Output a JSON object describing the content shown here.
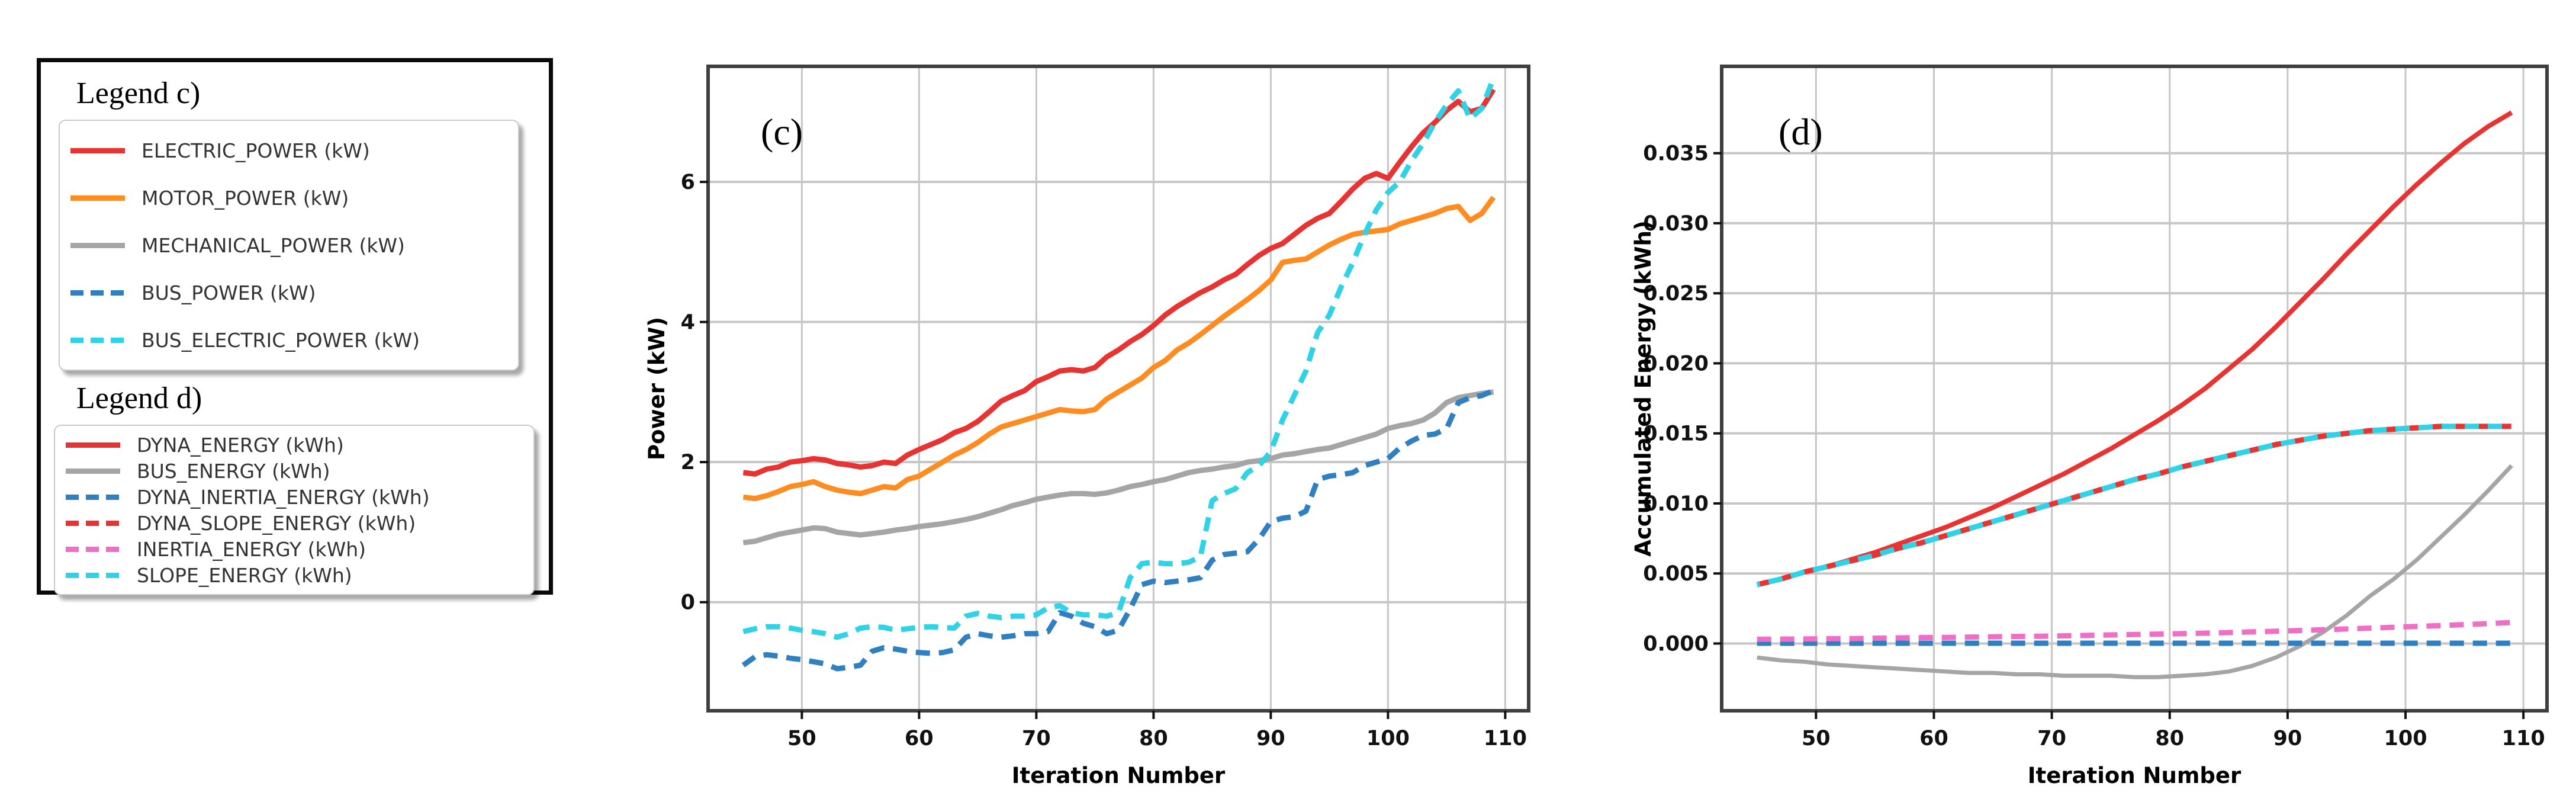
{
  "page": {
    "background": "#ffffff"
  },
  "legend": {
    "title_c": "Legend c)",
    "title_d": "Legend d)",
    "items_c": [
      {
        "key": "electric-power",
        "label": "ELECTRIC_POWER (kW)",
        "color": "#e73331",
        "dash": false
      },
      {
        "key": "motor-power",
        "label": "MOTOR_POWER (kW)",
        "color": "#ff8c21",
        "dash": false
      },
      {
        "key": "mechanical-power",
        "label": "MECHANICAL_POWER (kW)",
        "color": "#a5a5a5",
        "dash": false
      },
      {
        "key": "bus-power",
        "label": "BUS_POWER (kW)",
        "color": "#2f7fc1",
        "dash": true
      },
      {
        "key": "bus-electric-power",
        "label": "BUS_ELECTRIC_POWER (kW)",
        "color": "#2fd2e6",
        "dash": true
      }
    ],
    "items_d": [
      {
        "key": "dyna-energy",
        "label": "DYNA_ENERGY (kWh)",
        "color": "#e73331",
        "dash": false
      },
      {
        "key": "bus-energy",
        "label": "BUS_ENERGY (kWh)",
        "color": "#a5a5a5",
        "dash": false
      },
      {
        "key": "dyna-inertia-energy",
        "label": "DYNA_INERTIA_ENERGY (kWh)",
        "color": "#2f7fc1",
        "dash": true
      },
      {
        "key": "dyna-slope-energy",
        "label": "DYNA_SLOPE_ENERGY (kWh)",
        "color": "#e73331",
        "dash": true
      },
      {
        "key": "inertia-energy",
        "label": "INERTIA_ENERGY (kWh)",
        "color": "#ef6fc6",
        "dash": true
      },
      {
        "key": "slope-energy",
        "label": "SLOPE_ENERGY (kWh)",
        "color": "#2fd2e6",
        "dash": true
      }
    ]
  },
  "chart_data": [
    {
      "type": "line",
      "annotation": "(c)",
      "xlabel": "Iteration Number",
      "ylabel": "Power (kW)",
      "xlim": [
        42,
        112
      ],
      "ylim": [
        -1.55,
        7.65
      ],
      "grid": true,
      "legend_position": "external-left",
      "xticks": {
        "values": [
          50,
          60,
          70,
          80,
          90,
          100,
          110
        ],
        "labels": [
          "50",
          "60",
          "70",
          "80",
          "90",
          "100",
          "110"
        ]
      },
      "yticks": {
        "values": [
          0,
          2,
          4,
          6
        ],
        "labels": [
          "0",
          "2",
          "4",
          "6"
        ]
      },
      "x": [
        45,
        46,
        47,
        48,
        49,
        50,
        51,
        52,
        53,
        54,
        55,
        56,
        57,
        58,
        59,
        60,
        61,
        62,
        63,
        64,
        65,
        66,
        67,
        68,
        69,
        70,
        71,
        72,
        73,
        74,
        75,
        76,
        77,
        78,
        79,
        80,
        81,
        82,
        83,
        84,
        85,
        86,
        87,
        88,
        89,
        90,
        91,
        92,
        93,
        94,
        95,
        96,
        97,
        98,
        99,
        100,
        101,
        102,
        103,
        104,
        105,
        106,
        107,
        108,
        109
      ],
      "series": [
        {
          "name": "MECHANICAL_POWER (kW)",
          "color": "#a5a5a5",
          "dash": false,
          "width": 9,
          "values": [
            0.85,
            0.87,
            0.92,
            0.97,
            1.0,
            1.03,
            1.06,
            1.05,
            1.0,
            0.98,
            0.96,
            0.98,
            1.0,
            1.03,
            1.05,
            1.08,
            1.1,
            1.12,
            1.15,
            1.18,
            1.22,
            1.27,
            1.32,
            1.38,
            1.42,
            1.47,
            1.5,
            1.53,
            1.55,
            1.55,
            1.54,
            1.56,
            1.6,
            1.65,
            1.68,
            1.72,
            1.75,
            1.8,
            1.85,
            1.88,
            1.9,
            1.93,
            1.95,
            2.0,
            2.02,
            2.05,
            2.1,
            2.12,
            2.15,
            2.18,
            2.2,
            2.25,
            2.3,
            2.35,
            2.4,
            2.48,
            2.52,
            2.55,
            2.6,
            2.7,
            2.85,
            2.92,
            2.95,
            2.98,
            3.0
          ]
        },
        {
          "name": "MOTOR_POWER (kW)",
          "color": "#ff8c21",
          "dash": false,
          "width": 9,
          "values": [
            1.5,
            1.48,
            1.52,
            1.58,
            1.65,
            1.68,
            1.72,
            1.65,
            1.6,
            1.57,
            1.55,
            1.6,
            1.65,
            1.63,
            1.75,
            1.8,
            1.9,
            2.0,
            2.1,
            2.18,
            2.28,
            2.4,
            2.5,
            2.55,
            2.6,
            2.65,
            2.7,
            2.75,
            2.73,
            2.72,
            2.75,
            2.9,
            3.0,
            3.1,
            3.2,
            3.35,
            3.45,
            3.6,
            3.7,
            3.82,
            3.95,
            4.08,
            4.2,
            4.32,
            4.45,
            4.6,
            4.85,
            4.88,
            4.9,
            5.0,
            5.1,
            5.18,
            5.25,
            5.28,
            5.3,
            5.32,
            5.4,
            5.45,
            5.5,
            5.55,
            5.62,
            5.65,
            5.45,
            5.55,
            5.78
          ]
        },
        {
          "name": "ELECTRIC_POWER (kW)",
          "color": "#e73331",
          "dash": false,
          "width": 9,
          "values": [
            1.85,
            1.83,
            1.9,
            1.93,
            2.0,
            2.02,
            2.05,
            2.03,
            1.98,
            1.96,
            1.93,
            1.95,
            2.0,
            1.98,
            2.1,
            2.18,
            2.25,
            2.32,
            2.42,
            2.48,
            2.58,
            2.72,
            2.87,
            2.95,
            3.02,
            3.15,
            3.22,
            3.3,
            3.32,
            3.3,
            3.35,
            3.5,
            3.6,
            3.72,
            3.82,
            3.95,
            4.1,
            4.22,
            4.32,
            4.42,
            4.5,
            4.6,
            4.68,
            4.82,
            4.95,
            5.05,
            5.12,
            5.25,
            5.38,
            5.48,
            5.55,
            5.72,
            5.9,
            6.05,
            6.12,
            6.05,
            6.28,
            6.5,
            6.7,
            6.85,
            7.02,
            7.15,
            7.0,
            7.05,
            7.32
          ]
        },
        {
          "name": "BUS_POWER (kW)",
          "color": "#2f7fc1",
          "dash": true,
          "width": 9,
          "values": [
            -0.9,
            -0.78,
            -0.75,
            -0.77,
            -0.8,
            -0.82,
            -0.85,
            -0.88,
            -0.95,
            -0.93,
            -0.9,
            -0.7,
            -0.65,
            -0.67,
            -0.7,
            -0.72,
            -0.73,
            -0.72,
            -0.68,
            -0.5,
            -0.45,
            -0.48,
            -0.5,
            -0.48,
            -0.45,
            -0.45,
            -0.42,
            -0.15,
            -0.2,
            -0.3,
            -0.35,
            -0.45,
            -0.4,
            -0.1,
            0.25,
            0.3,
            0.28,
            0.3,
            0.32,
            0.35,
            0.6,
            0.68,
            0.7,
            0.72,
            0.9,
            1.15,
            1.2,
            1.22,
            1.3,
            1.75,
            1.8,
            1.82,
            1.85,
            1.95,
            2.0,
            2.05,
            2.2,
            2.3,
            2.38,
            2.4,
            2.48,
            2.85,
            2.92,
            2.95,
            3.02
          ]
        },
        {
          "name": "BUS_ELECTRIC_POWER (kW)",
          "color": "#2fd2e6",
          "dash": true,
          "width": 9,
          "values": [
            -0.42,
            -0.38,
            -0.35,
            -0.35,
            -0.37,
            -0.4,
            -0.42,
            -0.45,
            -0.5,
            -0.45,
            -0.37,
            -0.35,
            -0.36,
            -0.4,
            -0.38,
            -0.36,
            -0.35,
            -0.36,
            -0.37,
            -0.2,
            -0.16,
            -0.2,
            -0.22,
            -0.2,
            -0.2,
            -0.18,
            -0.08,
            -0.05,
            -0.15,
            -0.18,
            -0.18,
            -0.2,
            -0.15,
            0.35,
            0.55,
            0.57,
            0.55,
            0.55,
            0.57,
            0.65,
            1.45,
            1.55,
            1.62,
            1.85,
            1.95,
            2.15,
            2.6,
            2.95,
            3.3,
            3.85,
            4.1,
            4.5,
            4.85,
            5.25,
            5.6,
            5.85,
            6.0,
            6.3,
            6.55,
            6.85,
            7.1,
            7.3,
            6.9,
            7.05,
            7.48
          ]
        }
      ]
    },
    {
      "type": "line",
      "annotation": "(d)",
      "xlabel": "Iteration Number",
      "ylabel": "Accumulated Energy (kWh)",
      "xlim": [
        42,
        112
      ],
      "ylim": [
        -0.0048,
        0.0412
      ],
      "grid": true,
      "legend_position": "external-left",
      "xticks": {
        "values": [
          50,
          60,
          70,
          80,
          90,
          100,
          110
        ],
        "labels": [
          "50",
          "60",
          "70",
          "80",
          "90",
          "100",
          "110"
        ]
      },
      "yticks": {
        "values": [
          0.0,
          0.005,
          0.01,
          0.015,
          0.02,
          0.025,
          0.03,
          0.035
        ],
        "labels": [
          "0.000",
          "0.005",
          "0.010",
          "0.015",
          "0.020",
          "0.025",
          "0.030",
          "0.035"
        ]
      },
      "x": [
        45,
        47,
        49,
        51,
        53,
        55,
        57,
        59,
        61,
        63,
        65,
        67,
        69,
        71,
        73,
        75,
        77,
        79,
        81,
        83,
        85,
        87,
        89,
        91,
        93,
        95,
        97,
        99,
        101,
        103,
        105,
        107,
        109
      ],
      "series": [
        {
          "name": "BUS_ENERGY (kWh)",
          "color": "#a5a5a5",
          "dash": false,
          "width": 7,
          "values": [
            -0.001,
            -0.0012,
            -0.0013,
            -0.0015,
            -0.0016,
            -0.0017,
            -0.0018,
            -0.0019,
            -0.002,
            -0.0021,
            -0.0021,
            -0.0022,
            -0.0022,
            -0.0023,
            -0.0023,
            -0.0023,
            -0.0024,
            -0.0024,
            -0.0023,
            -0.0022,
            -0.002,
            -0.0016,
            -0.001,
            -0.0002,
            0.0008,
            0.002,
            0.0034,
            0.0046,
            0.006,
            0.0076,
            0.0092,
            0.0109,
            0.0127
          ]
        },
        {
          "name": "DYNA_INERTIA_ENERGY (kWh)",
          "color": "#2f7fc1",
          "dash": true,
          "width": 9,
          "x": [
            45,
            109
          ],
          "values": [
            2e-05,
            2e-05
          ]
        },
        {
          "name": "INERTIA_ENERGY (kWh)",
          "color": "#ef6fc6",
          "dash": true,
          "width": 9,
          "values": [
            0.0003,
            0.00031,
            0.00032,
            0.00034,
            0.00035,
            0.00038,
            0.0004,
            0.00042,
            0.00043,
            0.00046,
            0.00048,
            0.0005,
            0.00052,
            0.00055,
            0.00058,
            0.00061,
            0.00064,
            0.00067,
            0.0007,
            0.00074,
            0.00078,
            0.00083,
            0.00088,
            0.00093,
            0.00098,
            0.00104,
            0.0011,
            0.00116,
            0.00122,
            0.00128,
            0.00135,
            0.00142,
            0.0015
          ]
        },
        {
          "name": "DYNA_ENERGY (kWh)",
          "color": "#e73331",
          "dash": false,
          "width": 8,
          "values": [
            0.0042,
            0.0046,
            0.0051,
            0.0055,
            0.006,
            0.0065,
            0.0071,
            0.0077,
            0.0083,
            0.009,
            0.0097,
            0.0105,
            0.0113,
            0.0121,
            0.013,
            0.0139,
            0.0149,
            0.0159,
            0.017,
            0.0182,
            0.0196,
            0.021,
            0.0226,
            0.0243,
            0.026,
            0.0278,
            0.0295,
            0.0312,
            0.0328,
            0.0343,
            0.0357,
            0.0369,
            0.0379
          ]
        },
        {
          "name": "DYNA_SLOPE_ENERGY (kWh)",
          "color": "#e73331",
          "dash": true,
          "width": 9,
          "values": [
            0.0042,
            0.0046,
            0.0051,
            0.0055,
            0.0059,
            0.0063,
            0.0068,
            0.0072,
            0.0077,
            0.0082,
            0.0087,
            0.0092,
            0.0097,
            0.0102,
            0.0107,
            0.0112,
            0.0117,
            0.0121,
            0.0126,
            0.013,
            0.0134,
            0.0138,
            0.0142,
            0.0145,
            0.0148,
            0.015,
            0.0152,
            0.0153,
            0.0154,
            0.0155,
            0.0155,
            0.0155,
            0.0155
          ]
        },
        {
          "name": "SLOPE_ENERGY (kWh)",
          "color": "#2fd2e6",
          "dash": true,
          "width": 9,
          "dash_offset": 19,
          "values": [
            0.0042,
            0.0046,
            0.0051,
            0.0055,
            0.0059,
            0.0063,
            0.0068,
            0.0072,
            0.0077,
            0.0082,
            0.0087,
            0.0092,
            0.0097,
            0.0102,
            0.0107,
            0.0112,
            0.0117,
            0.0121,
            0.0126,
            0.013,
            0.0134,
            0.0138,
            0.0142,
            0.0145,
            0.0148,
            0.015,
            0.0152,
            0.0153,
            0.0154,
            0.0155,
            0.0155,
            0.0155,
            0.0155
          ]
        }
      ]
    }
  ]
}
